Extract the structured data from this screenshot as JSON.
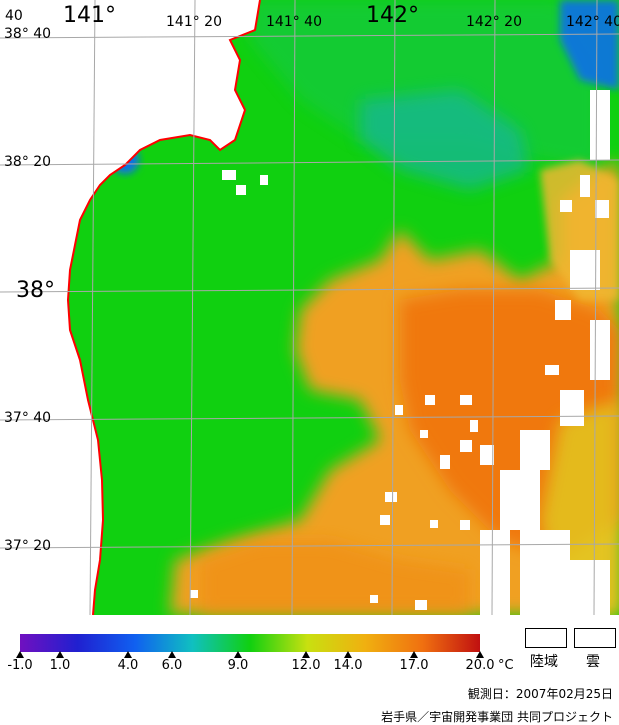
{
  "map": {
    "lon_labels": [
      "141°",
      "141° 20",
      "141° 40",
      "142°",
      "142° 20",
      "142° 40"
    ],
    "lat_labels": [
      "38° 40",
      "38° 20",
      "38°",
      "37° 40",
      "37° 20"
    ],
    "colors": {
      "sea_green": "#10d010",
      "sea_teal": "#18b880",
      "sea_blue": "#1070e8",
      "warm_orange": "#f08010",
      "warm_light": "#f0a020",
      "warm_yellow": "#e0d020",
      "land": "#ffffff",
      "coast": "#ff0000",
      "grid": "#a8a8a8"
    }
  },
  "colorbar": {
    "unit": "°C",
    "tick_labels": [
      "-1.0",
      "1.0",
      "4.0",
      "6.0",
      "9.0",
      "12.0",
      "14.0",
      "17.0",
      "20.0"
    ],
    "gradient": [
      "#7010c0",
      "#2020d0",
      "#1060f0",
      "#10c0c0",
      "#10d010",
      "#c8e010",
      "#f0b010",
      "#f07010",
      "#c01010"
    ]
  },
  "legend": {
    "land_label": "陸域",
    "cloud_label": "雲"
  },
  "footer": {
    "observation_date": "観測日：2007年02月25日",
    "credit": "岩手県／宇宙開発事業団 共同プロジェクト"
  }
}
